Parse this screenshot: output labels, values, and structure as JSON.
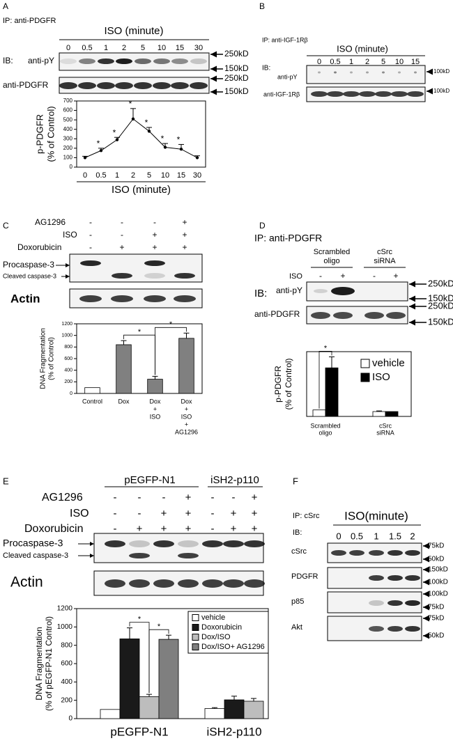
{
  "panels": {
    "A": {
      "label": "A",
      "ip": "IP: anti-PDGFR",
      "treatment": "ISO (minute)",
      "lanes": [
        "0",
        "0.5",
        "1",
        "2",
        "5",
        "10",
        "15",
        "30"
      ],
      "ib": "IB:",
      "blots": [
        {
          "name": "anti-pY",
          "markers": [
            "250kD",
            "150kD"
          ]
        },
        {
          "name": "anti-PDGFR",
          "markers": [
            "250kD",
            "150kD"
          ]
        }
      ]
    },
    "B": {
      "label": "B",
      "ip": "IP: anti-IGF-1Rβ",
      "treatment": "ISO (minute)",
      "lanes": [
        "0",
        "0.5",
        "1",
        "2",
        "5",
        "10",
        "15"
      ],
      "ib": "IB:",
      "blots": [
        {
          "name": "anti-pY",
          "markers": [
            "100kD"
          ]
        },
        {
          "name": "anti-IGF-1Rβ",
          "markers": [
            "100kD"
          ]
        }
      ]
    },
    "C": {
      "label": "C",
      "conditions": [
        {
          "name": "AG1296",
          "signs": [
            "-",
            "-",
            "-",
            "+"
          ]
        },
        {
          "name": "ISO",
          "signs": [
            "-",
            "-",
            "+",
            "+"
          ]
        },
        {
          "name": "Doxorubicin",
          "signs": [
            "-",
            "+",
            "+",
            "+"
          ]
        }
      ],
      "blots": [
        {
          "name": "Procaspase-3"
        },
        {
          "name": "Cleaved caspase-3"
        },
        {
          "name": "Actin"
        }
      ]
    },
    "D": {
      "label": "D",
      "ip": "IP: anti-PDGFR",
      "groups": [
        [
          "Scrambled",
          "oligo"
        ],
        [
          "cSrc",
          "siRNA"
        ]
      ],
      "conditions": [
        {
          "name": "ISO",
          "signs": [
            "-",
            "+",
            "-",
            "+"
          ]
        }
      ],
      "ib": "IB:",
      "blots": [
        {
          "name": "anti-pY",
          "markers": [
            "250kD",
            "150kD"
          ]
        },
        {
          "name": "anti-PDGFR",
          "markers": [
            "250kD",
            "150kD"
          ]
        }
      ]
    },
    "E": {
      "label": "E",
      "groups": [
        "pEGFP-N1",
        "iSH2-p110"
      ],
      "conditions": [
        {
          "name": "AG1296",
          "signs": [
            "-",
            "-",
            "-",
            "+",
            "-",
            "-",
            "+"
          ]
        },
        {
          "name": "ISO",
          "signs": [
            "-",
            "-",
            "+",
            "+",
            "-",
            "+",
            "+"
          ]
        },
        {
          "name": "Doxorubicin",
          "signs": [
            "-",
            "+",
            "+",
            "+",
            "-",
            "+",
            "+"
          ]
        }
      ],
      "blots": [
        {
          "name": "Procaspase-3"
        },
        {
          "name": "Cleaved caspase-3"
        },
        {
          "name": "Actin"
        }
      ]
    },
    "F": {
      "label": "F",
      "ip": "IP: cSrc",
      "treatment": "ISO(minute)",
      "lanes": [
        "0",
        "0.5",
        "1",
        "1.5",
        "2"
      ],
      "ib": "IB:",
      "blots": [
        {
          "name": "cSrc",
          "markers": [
            "75kD",
            "50kD"
          ]
        },
        {
          "name": "PDGFR",
          "markers": [
            "150kD",
            "100kD"
          ]
        },
        {
          "name": "p85",
          "markers": [
            "100kD",
            "75kD"
          ]
        },
        {
          "name": "Akt",
          "markers": [
            "75kD",
            "50kD"
          ]
        }
      ]
    }
  },
  "chart_data": [
    {
      "type": "line",
      "categories": [
        "0",
        "0.5",
        "1",
        "2",
        "5",
        "10",
        "15",
        "30"
      ],
      "values": [
        100,
        175,
        290,
        510,
        380,
        210,
        190,
        100
      ],
      "errors": [
        15,
        25,
        25,
        110,
        40,
        40,
        50,
        20
      ],
      "point_labels": [
        null,
        "*",
        "*",
        "*",
        "*",
        "*",
        "*",
        null
      ],
      "color": "#000000",
      "ylim": [
        0,
        700
      ],
      "yticks": [
        0,
        100,
        200,
        300,
        400,
        500,
        600,
        700
      ],
      "ylabel": [
        "p-PDGFR",
        "(% of Control)"
      ],
      "xlabel": "ISO (minute)"
    },
    {
      "type": "bar",
      "categories": [
        [
          "Control"
        ],
        [
          "Dox"
        ],
        [
          "Dox",
          "+",
          "ISO"
        ],
        [
          "Dox",
          "+",
          "ISO",
          "+",
          "AG1296"
        ]
      ],
      "values": [
        100,
        840,
        245,
        950
      ],
      "errors": [
        null,
        70,
        50,
        90
      ],
      "colors": [
        "#ffffff",
        "#808080",
        "#808080",
        "#808080"
      ],
      "ylim": [
        0,
        1200
      ],
      "yticks": [
        0,
        200,
        400,
        600,
        800,
        1000,
        1200
      ],
      "ylabel": [
        "DNA Fragmentation",
        "(% of Control)"
      ],
      "significance": [
        {
          "label": "*",
          "between": [
            1,
            2
          ]
        },
        {
          "label": "*",
          "between": [
            2,
            3
          ]
        }
      ]
    },
    {
      "type": "grouped-bar",
      "categories": [
        [
          "Scrambled",
          "oligo"
        ],
        [
          "cSrc",
          "siRNA"
        ]
      ],
      "series": [
        {
          "name": "vehicle",
          "color": "#ffffff",
          "values": [
            100,
            75
          ],
          "errors": [
            null,
            10
          ]
        },
        {
          "name": "ISO",
          "color": "#000000",
          "values": [
            750,
            75
          ],
          "errors": [
            170,
            null
          ]
        }
      ],
      "ylim": [
        0,
        1000
      ],
      "ylabel": [
        "p-PDGFR",
        "(% of Control)"
      ],
      "significance": [
        {
          "label": "*",
          "group": 0,
          "between": [
            0,
            1
          ]
        }
      ]
    },
    {
      "type": "grouped-bar",
      "categories": [
        "pEGFP-N1",
        "iSH2-p110"
      ],
      "series": [
        {
          "name": "vehicle",
          "color": "#ffffff",
          "values": [
            100,
            110
          ],
          "errors": [
            null,
            10
          ]
        },
        {
          "name": "Doxorubicin",
          "color": "#1a1a1a",
          "values": [
            870,
            205
          ],
          "errors": [
            120,
            40
          ]
        },
        {
          "name": "Dox/ISO",
          "color": "#bdbdbd",
          "values": [
            240,
            190
          ],
          "errors": [
            25,
            30
          ]
        },
        {
          "name": "Dox/ISO+ AG1296",
          "color": "#7f7f7f",
          "values": [
            865,
            null
          ],
          "errors": [
            45,
            null
          ]
        }
      ],
      "ylim": [
        0,
        1200
      ],
      "yticks": [
        0,
        200,
        400,
        600,
        800,
        1000,
        1200
      ],
      "ylabel": [
        "DNA Fragmentation",
        "(% of pEGFP-N1 Control)"
      ],
      "significance": [
        {
          "label": "*",
          "group": 0,
          "between": [
            1,
            2
          ]
        },
        {
          "label": "*",
          "group": 0,
          "between": [
            2,
            3
          ]
        }
      ]
    }
  ]
}
